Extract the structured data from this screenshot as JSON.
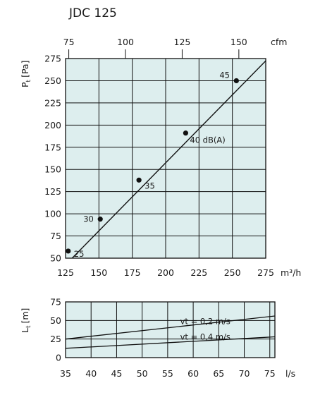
{
  "chart_data": [
    {
      "type": "line",
      "title": "JDC 125",
      "xlabel": "m³/h",
      "x2label": "cfm",
      "ylabel_main": "P",
      "ylabel_sub": "t",
      "ylabel_unit": "[Pa]",
      "xlim": [
        125,
        275
      ],
      "ylim": [
        50,
        275
      ],
      "x_ticks": [
        125,
        150,
        175,
        200,
        225,
        250,
        275
      ],
      "y_ticks": [
        50,
        75,
        100,
        125,
        150,
        175,
        200,
        225,
        250,
        275
      ],
      "x2_ticks": [
        75,
        100,
        125,
        150
      ],
      "x2_factor_m3h_per_cfm": 1.699,
      "grid": true,
      "background": "#ddeeee",
      "series": [
        {
          "points": [
            [
              126,
              44
            ],
            [
              278,
              277
            ]
          ]
        }
      ],
      "markers": [
        {
          "x": 127,
          "y": 58,
          "label": "25"
        },
        {
          "x": 151,
          "y": 94,
          "label": "30"
        },
        {
          "x": 180,
          "y": 138,
          "label": "35"
        },
        {
          "x": 215,
          "y": 191,
          "label": "40 dB(A)"
        },
        {
          "x": 253,
          "y": 250,
          "label": "45"
        }
      ]
    },
    {
      "type": "line",
      "xlabel": "l/s",
      "ylabel_main": "L",
      "ylabel_sub": "t",
      "ylabel_unit": "[m]",
      "xlim": [
        35,
        76
      ],
      "ylim": [
        0,
        75
      ],
      "x_ticks": [
        35,
        40,
        45,
        50,
        55,
        60,
        65,
        70,
        75
      ],
      "y_ticks": [
        0,
        25,
        50,
        75
      ],
      "grid": true,
      "background": "#ddeeee",
      "series": [
        {
          "name": "vt = 0,2 m/s",
          "x": [
            35,
            76
          ],
          "y": [
            25,
            56
          ]
        },
        {
          "name": "vt = 0,4 m/s",
          "x": [
            35,
            76
          ],
          "y": [
            12.5,
            28
          ]
        }
      ]
    }
  ]
}
